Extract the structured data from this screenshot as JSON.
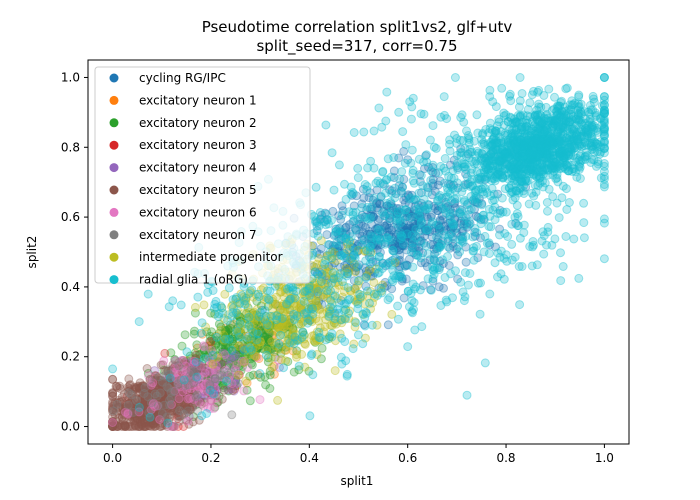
{
  "chart_data": {
    "type": "scatter",
    "title": "Pseudotime correlation split1vs2, glf+utv",
    "subtitle": "split_seed=317, corr=0.75",
    "xlabel": "split1",
    "ylabel": "split2",
    "xlim": [
      -0.05,
      1.05
    ],
    "ylim": [
      -0.05,
      1.05
    ],
    "xticks": [
      0.0,
      0.2,
      0.4,
      0.6,
      0.8,
      1.0
    ],
    "yticks": [
      0.0,
      0.2,
      0.4,
      0.6,
      0.8,
      1.0
    ],
    "xtick_labels": [
      "0.0",
      "0.2",
      "0.4",
      "0.6",
      "0.8",
      "1.0"
    ],
    "ytick_labels": [
      "0.0",
      "0.2",
      "0.4",
      "0.6",
      "0.8",
      "1.0"
    ],
    "grid": false,
    "legend_position": "upper-left",
    "marker_alpha": 0.3,
    "series": [
      {
        "name": "cycling RG/IPC",
        "color": "#1f77b4",
        "clusters": [
          {
            "cx": 0.58,
            "cy": 0.56,
            "sx": 0.1,
            "sy": 0.08,
            "n": 550
          }
        ]
      },
      {
        "name": "excitatory neuron 1",
        "color": "#ff7f0e",
        "clusters": [
          {
            "cx": 0.26,
            "cy": 0.22,
            "sx": 0.06,
            "sy": 0.05,
            "n": 60
          }
        ]
      },
      {
        "name": "excitatory neuron 2",
        "color": "#2ca02c",
        "clusters": [
          {
            "cx": 0.26,
            "cy": 0.22,
            "sx": 0.07,
            "sy": 0.06,
            "n": 320
          }
        ]
      },
      {
        "name": "excitatory neuron 3",
        "color": "#d62728",
        "clusters": [
          {
            "cx": 0.12,
            "cy": 0.09,
            "sx": 0.05,
            "sy": 0.04,
            "n": 60
          }
        ]
      },
      {
        "name": "excitatory neuron 4",
        "color": "#9467bd",
        "clusters": [
          {
            "cx": 0.18,
            "cy": 0.13,
            "sx": 0.05,
            "sy": 0.04,
            "n": 90
          }
        ]
      },
      {
        "name": "excitatory neuron 5",
        "color": "#8c564b",
        "clusters": [
          {
            "cx": 0.09,
            "cy": 0.07,
            "sx": 0.05,
            "sy": 0.04,
            "n": 600
          }
        ]
      },
      {
        "name": "excitatory neuron 6",
        "color": "#e377c2",
        "clusters": [
          {
            "cx": 0.16,
            "cy": 0.12,
            "sx": 0.06,
            "sy": 0.05,
            "n": 100
          }
        ]
      },
      {
        "name": "excitatory neuron 7",
        "color": "#7f7f7f",
        "clusters": [
          {
            "cx": 0.12,
            "cy": 0.1,
            "sx": 0.05,
            "sy": 0.04,
            "n": 60
          }
        ]
      },
      {
        "name": "intermediate progenitor",
        "color": "#bcbd22",
        "clusters": [
          {
            "cx": 0.38,
            "cy": 0.35,
            "sx": 0.08,
            "sy": 0.08,
            "n": 380
          }
        ]
      },
      {
        "name": "radial glia 1 (oRG)",
        "color": "#17becf",
        "clusters": [
          {
            "cx": 0.86,
            "cy": 0.8,
            "sx": 0.07,
            "sy": 0.06,
            "n": 1100
          },
          {
            "cx": 0.65,
            "cy": 0.6,
            "sx": 0.16,
            "sy": 0.14,
            "n": 600
          },
          {
            "cx": 0.35,
            "cy": 0.35,
            "sx": 0.12,
            "sy": 0.12,
            "n": 220
          }
        ]
      }
    ]
  }
}
